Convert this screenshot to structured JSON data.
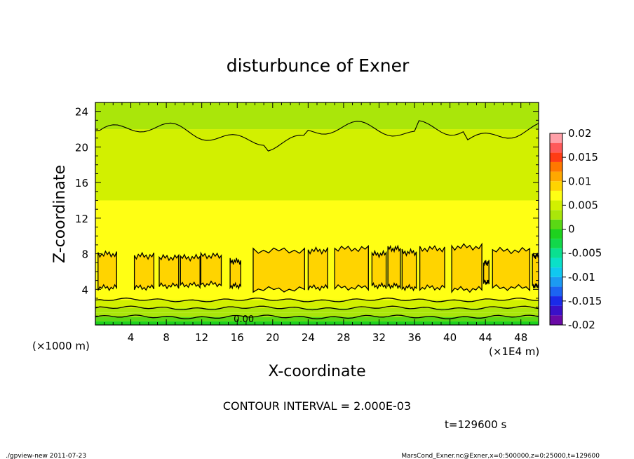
{
  "chart_data": {
    "type": "heatmap",
    "title": "disturbunce of Exner",
    "xlabel": "X-coordinate",
    "ylabel": "Z-coordinate",
    "x_unit": "(×1E4 m)",
    "y_unit": "(×1000 m)",
    "xlim": [
      0,
      50
    ],
    "ylim": [
      0,
      25
    ],
    "x_ticks": [
      4,
      8,
      12,
      16,
      20,
      24,
      28,
      32,
      36,
      40,
      44,
      48
    ],
    "y_ticks": [
      4,
      8,
      12,
      16,
      20,
      24
    ],
    "contour_interval_text": "CONTOUR INTERVAL = 2.000E-03",
    "contour_label": "0.00",
    "time_text": "t=129600 s",
    "colorbar": {
      "range": [
        -0.02,
        0.02
      ],
      "tick_labels": [
        "0.02",
        "0.015",
        "0.01",
        "0.005",
        "0",
        "-0.005",
        "-0.01",
        "-0.015",
        "-0.02"
      ],
      "levels": [
        {
          "min": -0.02,
          "max": -0.018,
          "color": "#6a0aa6"
        },
        {
          "min": -0.018,
          "max": -0.016,
          "color": "#3a10c8"
        },
        {
          "min": -0.016,
          "max": -0.014,
          "color": "#1a2ae8"
        },
        {
          "min": -0.014,
          "max": -0.012,
          "color": "#1c64f2"
        },
        {
          "min": -0.012,
          "max": -0.01,
          "color": "#1c9af2"
        },
        {
          "min": -0.01,
          "max": -0.008,
          "color": "#10c8f0"
        },
        {
          "min": -0.008,
          "max": -0.006,
          "color": "#0ae0c8"
        },
        {
          "min": -0.006,
          "max": -0.004,
          "color": "#0ae090"
        },
        {
          "min": -0.004,
          "max": -0.002,
          "color": "#12d84a"
        },
        {
          "min": -0.002,
          "max": 0.0,
          "color": "#1ed21e"
        },
        {
          "min": 0.0,
          "max": 0.002,
          "color": "#5ad814"
        },
        {
          "min": 0.002,
          "max": 0.004,
          "color": "#aae60a"
        },
        {
          "min": 0.004,
          "max": 0.006,
          "color": "#d2f000"
        },
        {
          "min": 0.006,
          "max": 0.008,
          "color": "#ffff14"
        },
        {
          "min": 0.008,
          "max": 0.01,
          "color": "#ffd400"
        },
        {
          "min": 0.01,
          "max": 0.012,
          "color": "#ffa800"
        },
        {
          "min": 0.012,
          "max": 0.014,
          "color": "#ff7800"
        },
        {
          "min": 0.014,
          "max": 0.016,
          "color": "#ff3c14"
        },
        {
          "min": 0.016,
          "max": 0.018,
          "color": "#ff5a5a"
        },
        {
          "min": 0.018,
          "max": 0.02,
          "color": "#ffa0a8"
        }
      ]
    },
    "field_bands": [
      {
        "z0": 0.0,
        "z1": 0.4,
        "value": -0.0015
      },
      {
        "z0": 0.4,
        "z1": 0.9,
        "value": 0.001
      },
      {
        "z0": 0.9,
        "z1": 1.4,
        "value": 0.0025
      },
      {
        "z0": 1.4,
        "z1": 1.9,
        "value": 0.0035
      },
      {
        "z0": 1.9,
        "z1": 2.8,
        "value": 0.0045
      },
      {
        "z0": 2.8,
        "z1": 14.0,
        "value": 0.007
      },
      {
        "z0": 14.0,
        "z1": 22.0,
        "value": 0.005
      },
      {
        "z0": 22.0,
        "z1": 25.0,
        "value": 0.003
      }
    ],
    "core_cells": [
      {
        "x0": 0.3,
        "x1": 2.4,
        "z0": 4.2,
        "z1": 8.0
      },
      {
        "x0": 4.4,
        "x1": 6.6,
        "z0": 4.2,
        "z1": 7.8
      },
      {
        "x0": 7.2,
        "x1": 9.4,
        "z0": 4.4,
        "z1": 7.6
      },
      {
        "x0": 9.6,
        "x1": 11.8,
        "z0": 4.5,
        "z1": 7.6
      },
      {
        "x0": 11.9,
        "x1": 14.2,
        "z0": 4.6,
        "z1": 7.8
      },
      {
        "x0": 15.2,
        "x1": 16.4,
        "z0": 4.4,
        "z1": 7.2
      },
      {
        "x0": 17.8,
        "x1": 23.6,
        "z0": 4.0,
        "z1": 8.4
      },
      {
        "x0": 24.0,
        "x1": 26.2,
        "z0": 4.2,
        "z1": 8.4
      },
      {
        "x0": 27.0,
        "x1": 30.8,
        "z0": 4.2,
        "z1": 8.6
      },
      {
        "x0": 31.2,
        "x1": 32.8,
        "z0": 4.4,
        "z1": 8.0
      },
      {
        "x0": 33.0,
        "x1": 34.4,
        "z0": 4.4,
        "z1": 8.6
      },
      {
        "x0": 34.6,
        "x1": 36.2,
        "z0": 4.2,
        "z1": 8.2
      },
      {
        "x0": 36.6,
        "x1": 39.4,
        "z0": 4.2,
        "z1": 8.6
      },
      {
        "x0": 40.2,
        "x1": 43.6,
        "z0": 4.0,
        "z1": 8.8
      },
      {
        "x0": 43.8,
        "x1": 44.4,
        "z0": 4.8,
        "z1": 7.0
      },
      {
        "x0": 44.8,
        "x1": 49.0,
        "z0": 4.2,
        "z1": 8.4
      },
      {
        "x0": 49.3,
        "x1": 50.0,
        "z0": 4.4,
        "z1": 7.8
      }
    ]
  },
  "footer": {
    "left_text": "./gpview-new   2011-07-23",
    "right_text": "MarsCond_Exner.nc@Exner,x=0:500000,z=0:25000,t=129600"
  }
}
